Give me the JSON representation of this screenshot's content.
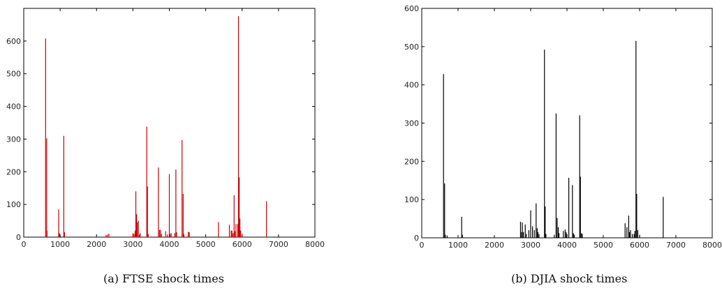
{
  "chart_data": [
    {
      "type": "bar",
      "caption": "(a) FTSE shock times",
      "color": "#cc0000",
      "xlim": [
        0,
        8000
      ],
      "ylim": [
        0,
        700
      ],
      "xticks": [
        0,
        1000,
        2000,
        3000,
        4000,
        5000,
        6000,
        7000,
        8000
      ],
      "yticks": [
        0,
        100,
        200,
        300,
        400,
        500,
        600
      ],
      "x": [
        600,
        630,
        640,
        960,
        980,
        1100,
        1120,
        2260,
        2300,
        2340,
        3000,
        3030,
        3060,
        3080,
        3100,
        3120,
        3150,
        3180,
        3200,
        3380,
        3400,
        3420,
        3700,
        3730,
        3760,
        3780,
        3900,
        3950,
        4000,
        4020,
        4050,
        4150,
        4180,
        4200,
        4350,
        4380,
        4400,
        4520,
        4550,
        5350,
        5650,
        5700,
        5720,
        5750,
        5780,
        5800,
        5830,
        5880,
        5900,
        5920,
        5940,
        5960,
        6000,
        6670
      ],
      "y": [
        608,
        302,
        20,
        85,
        12,
        310,
        15,
        6,
        8,
        10,
        12,
        10,
        20,
        140,
        70,
        45,
        50,
        8,
        12,
        338,
        155,
        10,
        213,
        22,
        22,
        10,
        18,
        8,
        193,
        10,
        12,
        12,
        207,
        15,
        297,
        132,
        10,
        16,
        15,
        46,
        38,
        20,
        20,
        12,
        128,
        18,
        40,
        40,
        676,
        183,
        57,
        20,
        10,
        110
      ]
    },
    {
      "type": "bar",
      "caption": "(b) DJIA shock times",
      "color": "#000000",
      "xlim": [
        0,
        8000
      ],
      "ylim": [
        0,
        600
      ],
      "xticks": [
        0,
        1000,
        2000,
        3000,
        4000,
        5000,
        6000,
        7000,
        8000
      ],
      "yticks": [
        0,
        100,
        200,
        300,
        400,
        500,
        600
      ],
      "x": [
        600,
        630,
        650,
        700,
        1100,
        1120,
        2720,
        2750,
        2770,
        2800,
        2850,
        2880,
        2950,
        3000,
        3050,
        3100,
        3150,
        3180,
        3200,
        3230,
        3380,
        3400,
        3420,
        3650,
        3700,
        3730,
        3760,
        3780,
        3900,
        3950,
        3980,
        4000,
        4050,
        4150,
        4180,
        4200,
        4350,
        4370,
        4400,
        4420,
        5600,
        5650,
        5700,
        5720,
        5750,
        5800,
        5850,
        5870,
        5900,
        5920,
        5950,
        6000,
        6650
      ],
      "y": [
        428,
        142,
        8,
        6,
        55,
        8,
        42,
        15,
        40,
        15,
        35,
        10,
        20,
        72,
        30,
        20,
        90,
        25,
        15,
        10,
        492,
        82,
        10,
        8,
        325,
        52,
        28,
        12,
        18,
        22,
        15,
        10,
        157,
        138,
        12,
        8,
        320,
        160,
        12,
        10,
        38,
        28,
        58,
        15,
        20,
        10,
        10,
        18,
        515,
        115,
        20,
        8,
        107
      ]
    }
  ]
}
